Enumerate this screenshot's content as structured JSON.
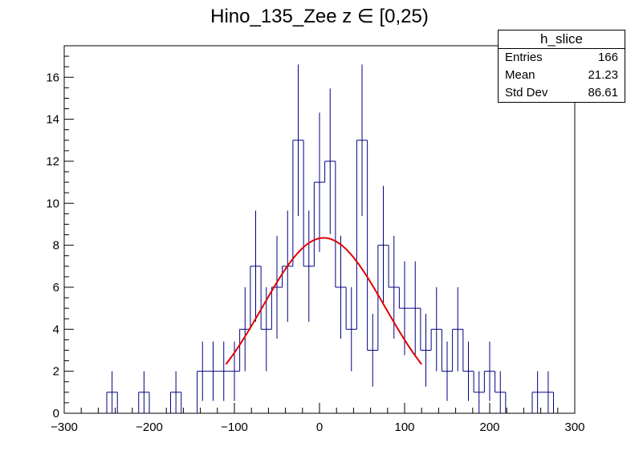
{
  "chart_data": {
    "type": "histogram",
    "title": "Hino_135_Zee z  ∈ [0,25)",
    "xlim": [
      -300,
      300
    ],
    "ylim": [
      0,
      17.5
    ],
    "x_ticks": [
      -300,
      -200,
      -100,
      0,
      100,
      200,
      300
    ],
    "y_ticks": [
      0,
      2,
      4,
      6,
      8,
      10,
      12,
      14,
      16
    ],
    "bin_width": 12.5,
    "bin_centers": [
      -243.75,
      -206.25,
      -168.75,
      -137.5,
      -125,
      -112.5,
      -100,
      -87.5,
      -75,
      -62.5,
      -50,
      -37.5,
      -25,
      -12.5,
      0,
      12.5,
      25,
      37.5,
      50,
      62.5,
      75,
      87.5,
      100,
      112.5,
      125,
      137.5,
      150,
      162.5,
      175,
      187.5,
      200,
      212.5,
      256.25,
      268.75
    ],
    "counts": [
      1,
      1,
      1,
      2,
      2,
      2,
      2,
      4,
      7,
      4,
      6,
      7,
      13,
      7,
      11,
      12,
      6,
      4,
      13,
      3,
      8,
      6,
      5,
      5,
      3,
      4,
      2,
      4,
      2,
      1,
      2,
      1,
      1,
      1
    ],
    "fit": {
      "function": "gaus",
      "constant": 8.35,
      "mean": 5,
      "sigma": 72,
      "range": [
        -110,
        120
      ]
    },
    "series_color": "#000080",
    "fit_color": "#e00000",
    "stats": {
      "name": "h_slice",
      "rows": [
        {
          "label": "Entries",
          "value": "166"
        },
        {
          "label": "Mean",
          "value": "21.23"
        },
        {
          "label": "Std Dev",
          "value": "86.61"
        }
      ]
    }
  }
}
